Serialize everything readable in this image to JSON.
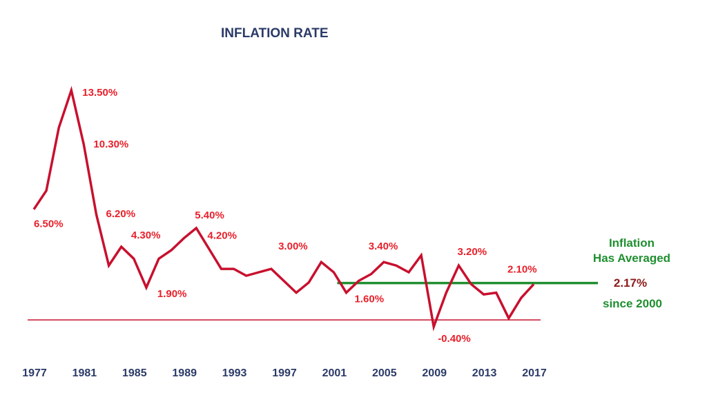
{
  "chart_data": {
    "type": "line",
    "title": "INFLATION RATE",
    "xlabel": "",
    "ylabel": "",
    "xlim": [
      1976,
      2022
    ],
    "ylim": [
      -0.6,
      16.0
    ],
    "x_ticks": [
      1977,
      1981,
      1985,
      1989,
      1993,
      1997,
      2001,
      2005,
      2009,
      2013,
      2017
    ],
    "grid": false,
    "series": [
      {
        "color": "#c8102e",
        "x": [
          1977,
          1978,
          1979,
          1980,
          1981,
          1982,
          1983,
          1984,
          1985,
          1986,
          1987,
          1988,
          1989,
          1990,
          1991,
          1992,
          1993,
          1994,
          1995,
          1996,
          1997,
          1998,
          1999,
          2000,
          2001,
          2002,
          2003,
          2004,
          2005,
          2006,
          2007,
          2008,
          2009,
          2010,
          2011,
          2012,
          2013,
          2014,
          2015,
          2016,
          2017
        ],
        "values": [
          6.5,
          7.6,
          11.3,
          13.5,
          10.3,
          6.2,
          3.2,
          4.3,
          3.6,
          1.9,
          3.6,
          4.1,
          4.8,
          5.4,
          4.2,
          3.0,
          3.0,
          2.6,
          2.8,
          3.0,
          2.3,
          1.6,
          2.2,
          3.4,
          2.8,
          1.6,
          2.3,
          2.7,
          3.4,
          3.2,
          2.8,
          3.8,
          -0.4,
          1.6,
          3.2,
          2.1,
          1.5,
          1.6,
          0.1,
          1.3,
          2.1
        ]
      }
    ],
    "data_labels": [
      {
        "x": 1977,
        "y": 6.5,
        "text": "6.50%"
      },
      {
        "x": 1980,
        "y": 13.5,
        "text": "13.50%"
      },
      {
        "x": 1981,
        "y": 10.3,
        "text": "10.30%"
      },
      {
        "x": 1982,
        "y": 6.2,
        "text": "6.20%"
      },
      {
        "x": 1986,
        "y": 1.9,
        "text": "1.90%"
      },
      {
        "x": 1986,
        "y": 4.3,
        "text": "4.30%"
      },
      {
        "x": 1990,
        "y": 5.4,
        "text": "5.40%"
      },
      {
        "x": 1991,
        "y": 4.2,
        "text": "4.20%"
      },
      {
        "x": 1998,
        "y": 3.0,
        "text": "3.00%"
      },
      {
        "x": 2002,
        "y": 1.6,
        "text": "1.60%"
      },
      {
        "x": 2005,
        "y": 3.4,
        "text": "3.40%"
      },
      {
        "x": 2009,
        "y": -0.4,
        "text": "-0.40%"
      },
      {
        "x": 2012,
        "y": 3.2,
        "text": "3.20%"
      },
      {
        "x": 2017,
        "y": 2.1,
        "text": "2.10%"
      }
    ],
    "zero_line": {
      "y": 0,
      "color": "#c8102e"
    },
    "average_line": {
      "from": 2001,
      "y": 2.17,
      "color": "#1f8f2f"
    },
    "annotation": {
      "line1": "Inflation",
      "line2": "Has Averaged",
      "value": "2.17%",
      "line3": "since 2000",
      "color_text": "#1f8f2f",
      "color_value": "#8b1a1a"
    },
    "colors": {
      "line": "#c8102e",
      "labels": "#e8202a",
      "ticks": "#2b3a67",
      "title": "#2b3a67"
    }
  }
}
